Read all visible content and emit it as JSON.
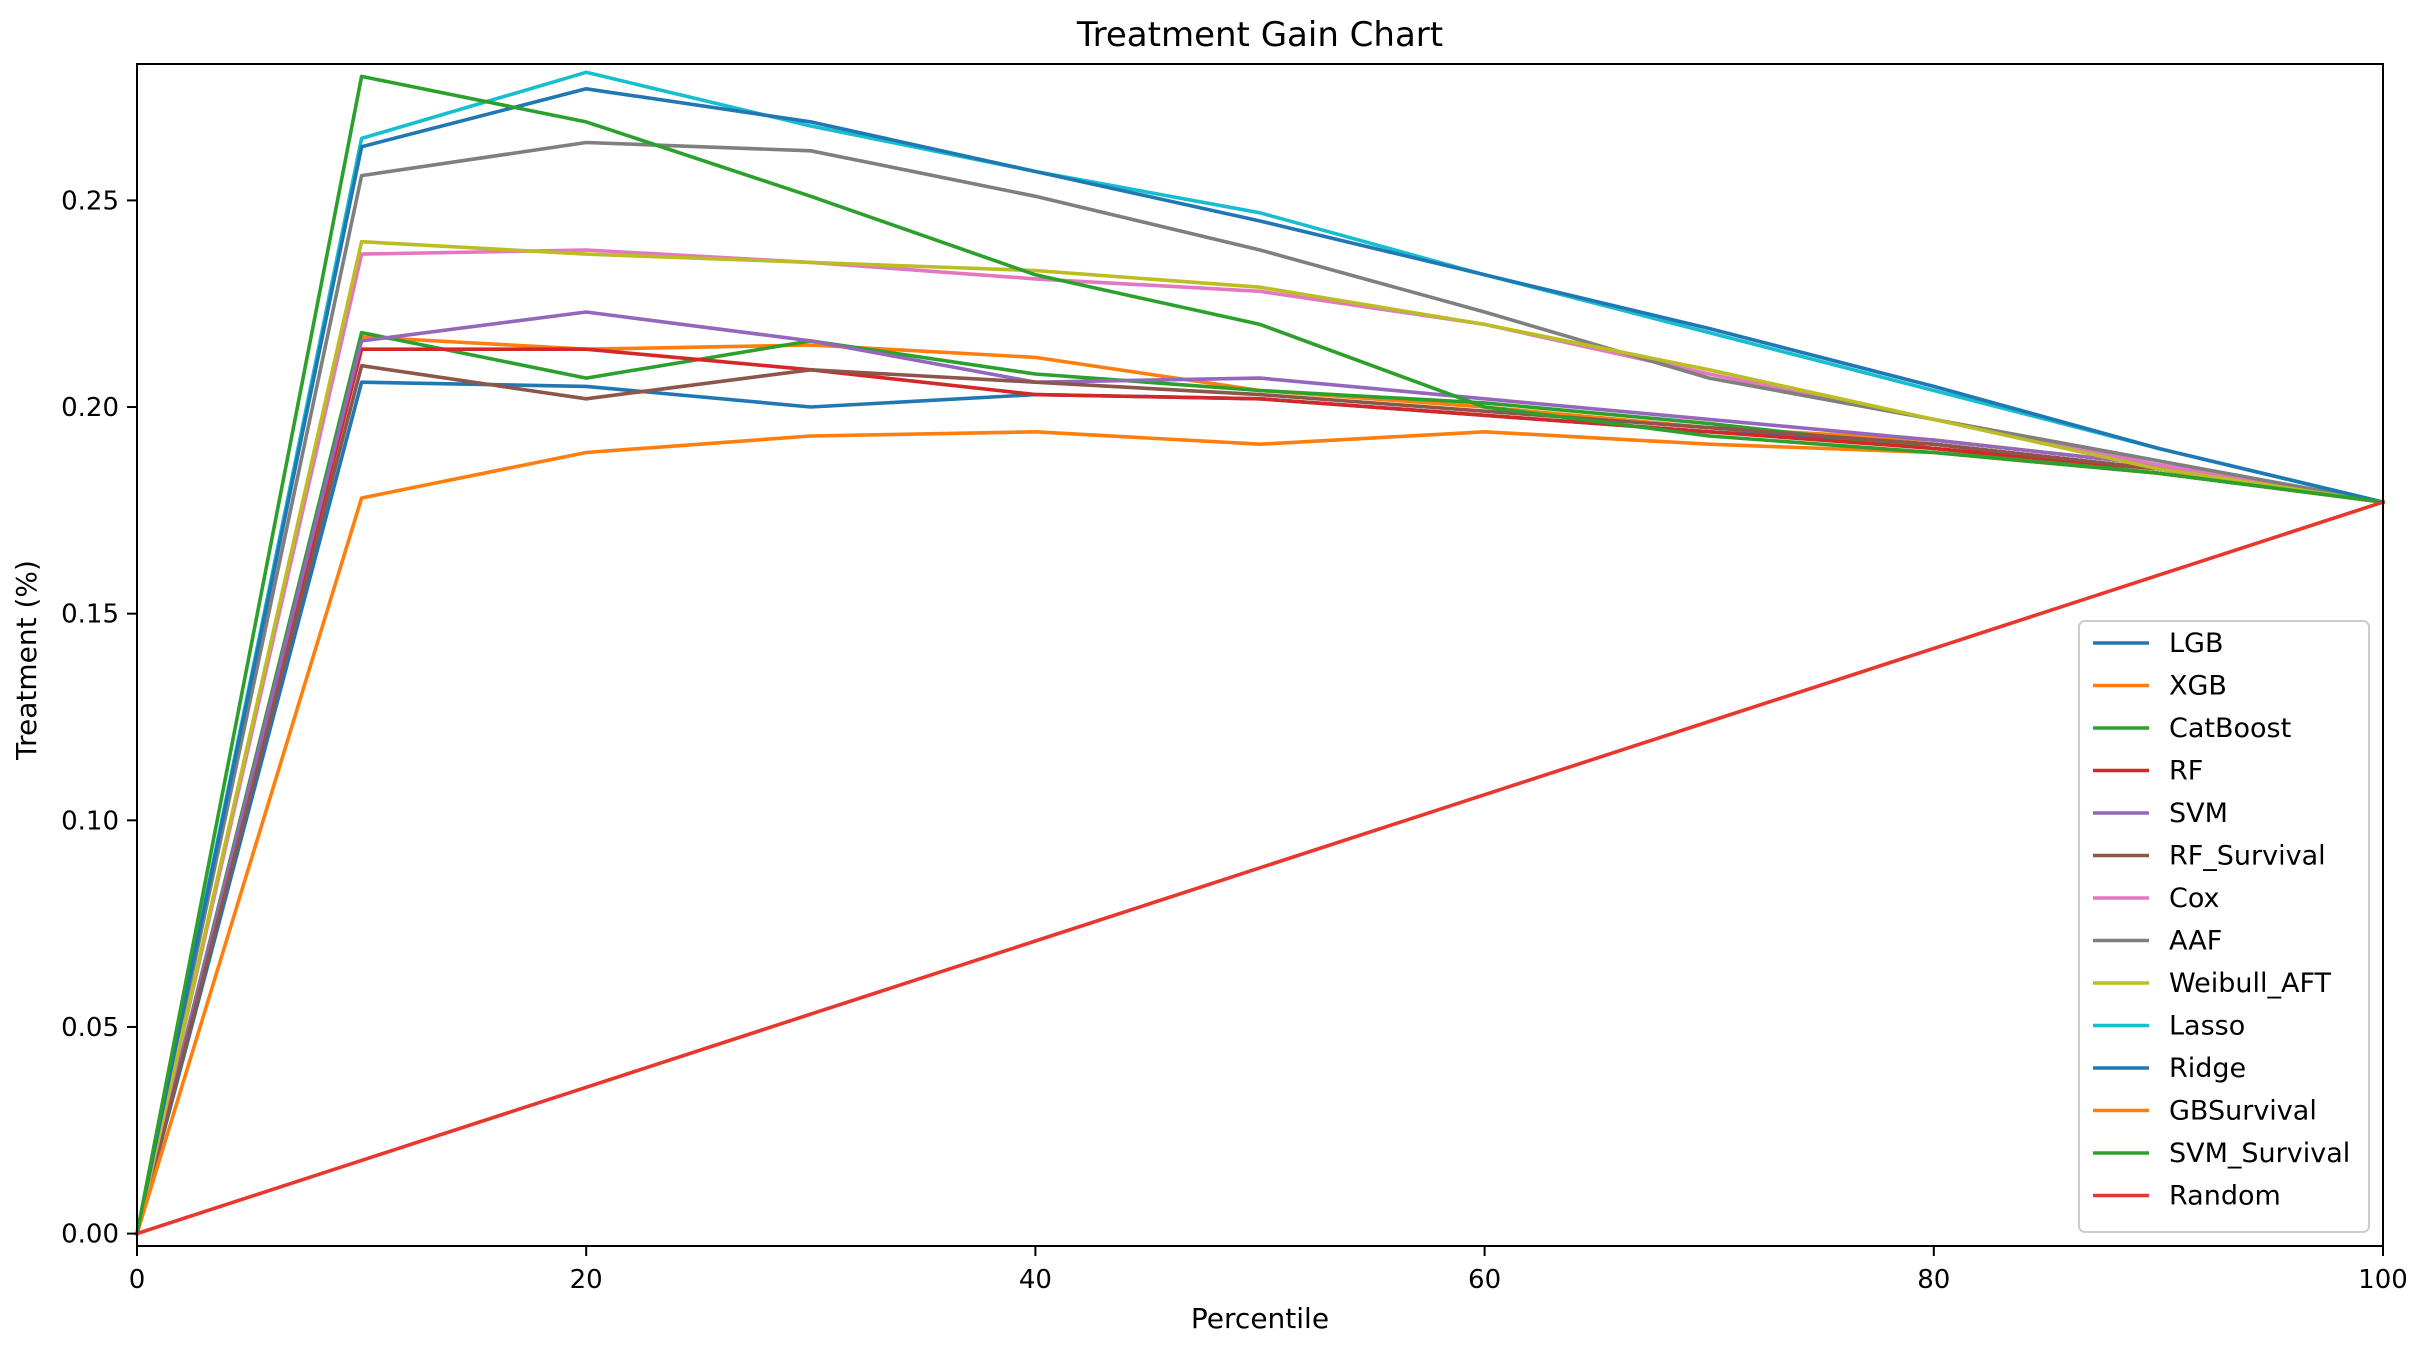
{
  "chart_data": {
    "type": "line",
    "title": "Treatment Gain Chart",
    "xlabel": "Percentile",
    "ylabel": "Treatment (%)",
    "xlim": [
      0,
      100
    ],
    "ylim": [
      -0.003,
      0.283
    ],
    "x_ticks": [
      0,
      20,
      40,
      60,
      80,
      100
    ],
    "y_ticks": [
      0.0,
      0.05,
      0.1,
      0.15,
      0.2,
      0.25
    ],
    "grid": false,
    "legend_position": "lower-right",
    "x": [
      0,
      10,
      20,
      30,
      40,
      50,
      60,
      70,
      80,
      90,
      100
    ],
    "series": [
      {
        "name": "LGB",
        "color": "#1f77b4",
        "values": [
          0,
          0.206,
          0.205,
          0.2,
          0.203,
          0.202,
          0.198,
          0.194,
          0.191,
          0.185,
          0.177
        ]
      },
      {
        "name": "XGB",
        "color": "#ff7f0e",
        "values": [
          0,
          0.217,
          0.214,
          0.215,
          0.212,
          0.204,
          0.2,
          0.195,
          0.192,
          0.186,
          0.177
        ]
      },
      {
        "name": "CatBoost",
        "color": "#2ca02c",
        "values": [
          0,
          0.218,
          0.207,
          0.216,
          0.208,
          0.204,
          0.201,
          0.196,
          0.19,
          0.184,
          0.177
        ]
      },
      {
        "name": "RF",
        "color": "#d62728",
        "values": [
          0,
          0.214,
          0.214,
          0.209,
          0.203,
          0.202,
          0.198,
          0.194,
          0.19,
          0.185,
          0.177
        ]
      },
      {
        "name": "SVM",
        "color": "#9467bd",
        "values": [
          0,
          0.216,
          0.223,
          0.216,
          0.206,
          0.207,
          0.202,
          0.197,
          0.192,
          0.186,
          0.177
        ]
      },
      {
        "name": "RF_Survival",
        "color": "#8c564b",
        "values": [
          0,
          0.21,
          0.202,
          0.209,
          0.206,
          0.203,
          0.199,
          0.195,
          0.191,
          0.185,
          0.177
        ]
      },
      {
        "name": "Cox",
        "color": "#e377c2",
        "values": [
          0,
          0.237,
          0.238,
          0.235,
          0.231,
          0.228,
          0.22,
          0.208,
          0.197,
          0.186,
          0.177
        ]
      },
      {
        "name": "AAF",
        "color": "#7f7f7f",
        "values": [
          0,
          0.256,
          0.264,
          0.262,
          0.251,
          0.238,
          0.223,
          0.207,
          0.197,
          0.187,
          0.177
        ]
      },
      {
        "name": "Weibull_AFT",
        "color": "#bcbd22",
        "values": [
          0,
          0.24,
          0.237,
          0.235,
          0.233,
          0.229,
          0.22,
          0.209,
          0.197,
          0.185,
          0.177
        ]
      },
      {
        "name": "Lasso",
        "color": "#17becf",
        "values": [
          0,
          0.265,
          0.281,
          0.268,
          0.257,
          0.247,
          0.232,
          0.218,
          0.204,
          0.19,
          0.177
        ]
      },
      {
        "name": "Ridge",
        "color": "#1f77b4",
        "values": [
          0,
          0.263,
          0.277,
          0.269,
          0.257,
          0.245,
          0.232,
          0.219,
          0.205,
          0.19,
          0.177
        ]
      },
      {
        "name": "GBSurvival",
        "color": "#ff7f0e",
        "values": [
          0,
          0.178,
          0.189,
          0.193,
          0.194,
          0.191,
          0.194,
          0.191,
          0.189,
          0.184,
          0.177
        ]
      },
      {
        "name": "SVM_Survival",
        "color": "#2ca02c",
        "values": [
          0,
          0.28,
          0.269,
          0.251,
          0.232,
          0.22,
          0.2,
          0.193,
          0.189,
          0.184,
          0.177
        ]
      },
      {
        "name": "Random",
        "color": "#e8372c",
        "values": [
          0,
          0.0177,
          0.0354,
          0.0531,
          0.0708,
          0.0885,
          0.1062,
          0.1239,
          0.1416,
          0.1593,
          0.177
        ]
      }
    ]
  }
}
